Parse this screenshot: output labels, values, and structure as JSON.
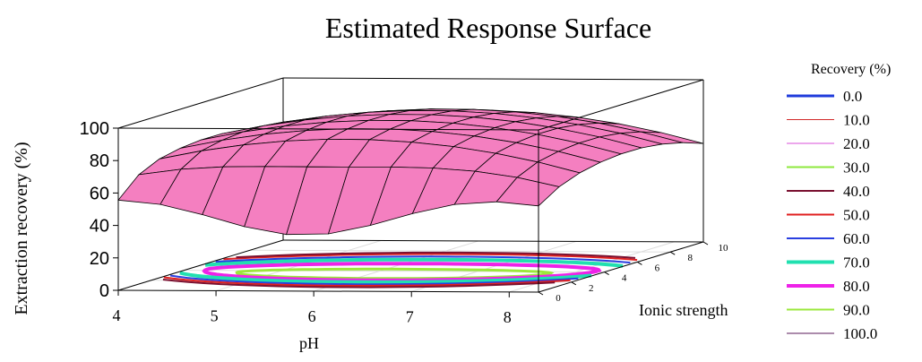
{
  "chart_data": {
    "type": "surface",
    "title": "Estimated Response Surface",
    "xlabel": "pH",
    "ylabel": "Ionic strength",
    "zlabel": "Extraction recovery (%)",
    "x_ticks": [
      "4",
      "5",
      "6",
      "7",
      "8"
    ],
    "y_ticks": [
      "0",
      "2",
      "4",
      "6",
      "8",
      "10"
    ],
    "z_ticks": [
      "0",
      "20",
      "40",
      "60",
      "80",
      "100"
    ],
    "xlim": [
      4,
      8.3
    ],
    "ylim": [
      0,
      10
    ],
    "zlim": [
      0,
      100
    ],
    "surface_color": "#f47fc0",
    "legend": {
      "title": "Recovery (%)",
      "entries": [
        {
          "label": "0.0",
          "color": "#1f3bdb"
        },
        {
          "label": "10.0",
          "color": "#d22a2a"
        },
        {
          "label": "20.0",
          "color": "#d84fd8"
        },
        {
          "label": "30.0",
          "color": "#8ee83c"
        },
        {
          "label": "40.0",
          "color": "#7a1030"
        },
        {
          "label": "50.0",
          "color": "#e02020"
        },
        {
          "label": "60.0",
          "color": "#2a3fe0"
        },
        {
          "label": "70.0",
          "color": "#21e0b0"
        },
        {
          "label": "80.0",
          "color": "#ee22e8"
        },
        {
          "label": "90.0",
          "color": "#9be83c"
        },
        {
          "label": "100.0",
          "color": "#5a1a5a"
        }
      ]
    }
  }
}
